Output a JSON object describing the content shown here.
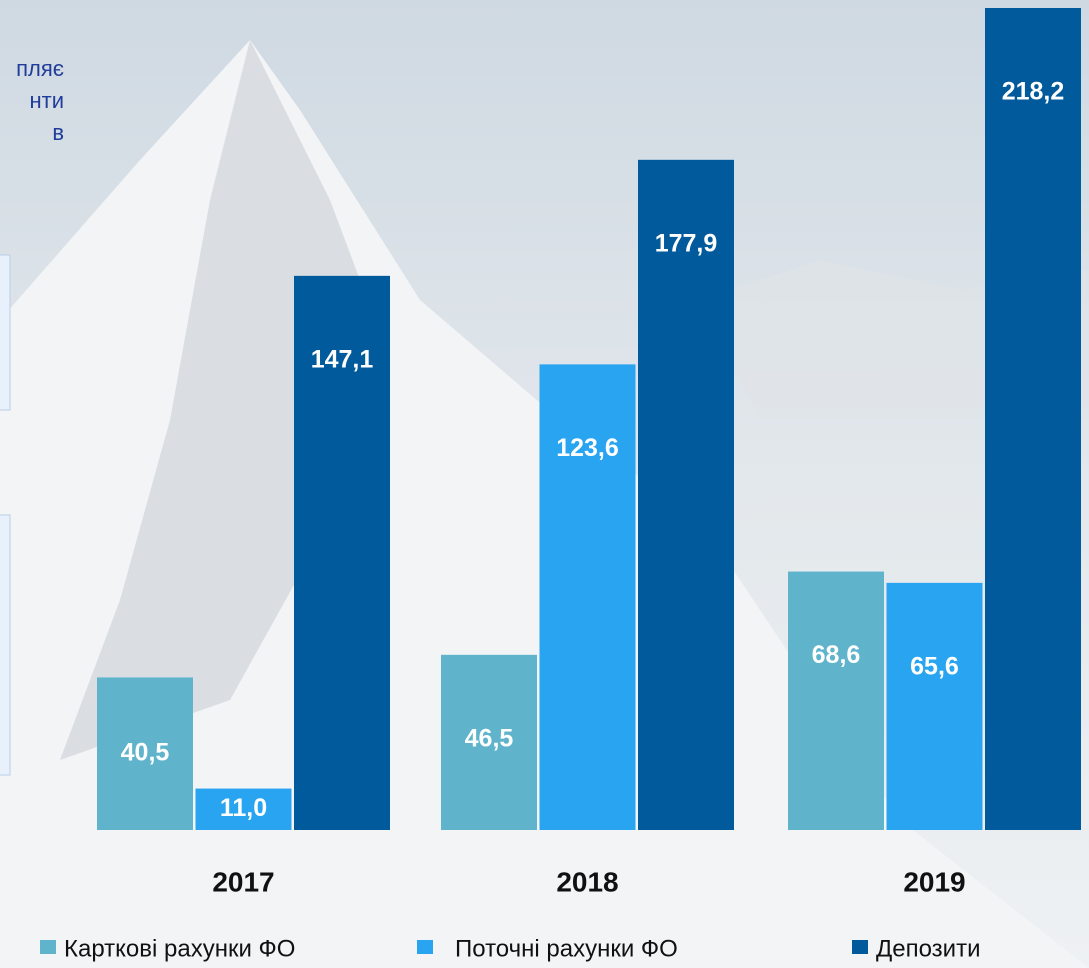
{
  "side_text_lines": [
    "пляє",
    "нти",
    "в"
  ],
  "chart_data": {
    "type": "bar",
    "categories": [
      "2017",
      "2018",
      "2019"
    ],
    "series": [
      {
        "name": "Карткові рахунки ФО",
        "color": "#5fb4cc",
        "values": [
          40.5,
          46.5,
          68.6
        ],
        "value_labels": [
          "40,5",
          "46,5",
          "68,6"
        ]
      },
      {
        "name": "Поточні рахунки ФО",
        "color": "#29a4f0",
        "values": [
          11.0,
          123.6,
          65.6
        ],
        "value_labels": [
          "11,0",
          "123,6",
          "65,6"
        ]
      },
      {
        "name": "Депозити",
        "color": "#005a9c",
        "values": [
          147.1,
          177.9,
          218.2
        ],
        "value_labels": [
          "147,1",
          "177,9",
          "218,2"
        ]
      }
    ]
  }
}
